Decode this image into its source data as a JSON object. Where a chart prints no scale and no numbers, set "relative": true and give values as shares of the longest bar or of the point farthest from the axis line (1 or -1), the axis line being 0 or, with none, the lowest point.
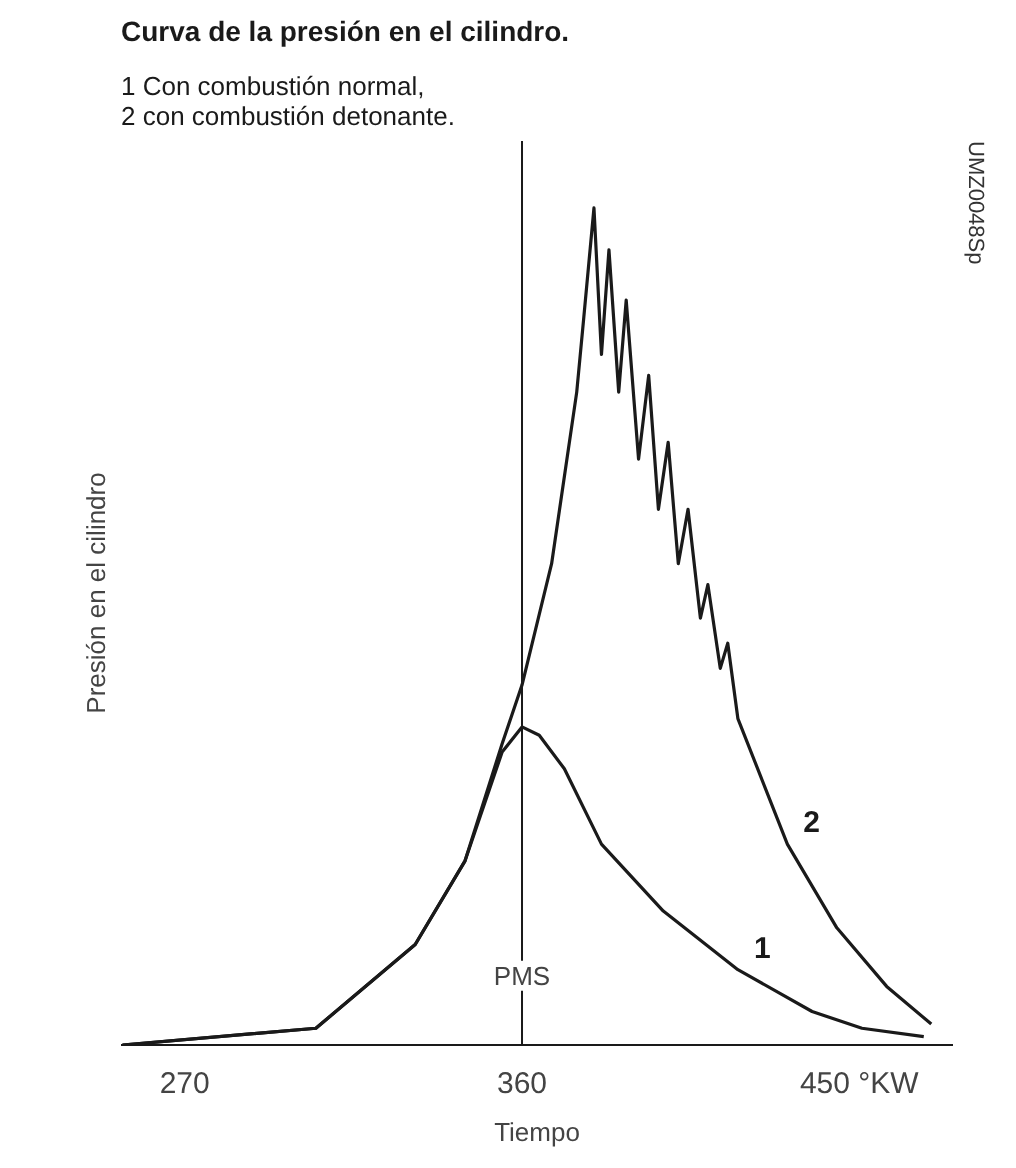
{
  "chart_data": {
    "type": "line",
    "title": "Curva de la presión en el cilindro.",
    "subtitle": "1 Con combustión normal,\n2 con combustión detonante.",
    "xlabel": "Tiempo",
    "ylabel": "Presión en el cilindro",
    "relative": true,
    "xlim": [
      253,
      475
    ],
    "xticks": [
      270,
      360,
      {
        "value": 450,
        "label": "450 °KW"
      }
    ],
    "series": [
      {
        "name": "1",
        "color": "#1a1a1a",
        "x": [
          253.4,
          305,
          331.5,
          344.8,
          354.7,
          360,
          364.6,
          371.3,
          381.2,
          397.7,
          417.6,
          437.4,
          450.7,
          467.2
        ],
        "values": [
          0.0,
          0.02,
          0.12,
          0.22,
          0.35,
          0.38,
          0.37,
          0.33,
          0.24,
          0.16,
          0.09,
          0.04,
          0.02,
          0.01
        ]
      },
      {
        "name": "2",
        "color": "#1a1a1a",
        "x": [
          253.4,
          305,
          331.5,
          344.8,
          354.7,
          360,
          367.9,
          374.6,
          376.5,
          379.2,
          381.2,
          383.2,
          385.8,
          387.8,
          391.1,
          393.8,
          396.4,
          399,
          401.7,
          404.3,
          407.6,
          409.6,
          412.9,
          414.9,
          417.6,
          430.8,
          444,
          457.3,
          469.2
        ],
        "values": [
          0.0,
          0.02,
          0.12,
          0.22,
          0.36,
          0.43,
          0.575,
          0.78,
          0.87,
          1.0,
          0.825,
          0.95,
          0.78,
          0.89,
          0.7,
          0.8,
          0.64,
          0.72,
          0.575,
          0.64,
          0.51,
          0.55,
          0.45,
          0.48,
          0.39,
          0.24,
          0.14,
          0.07,
          0.025
        ]
      }
    ],
    "ref_lines": [
      {
        "axis": "x",
        "value": 360,
        "label": "PMS",
        "color": "#1a1a1a"
      }
    ],
    "annotations": [
      "UMZ0048Sp"
    ],
    "grid": false,
    "marker": "none",
    "line_style": "solid"
  }
}
